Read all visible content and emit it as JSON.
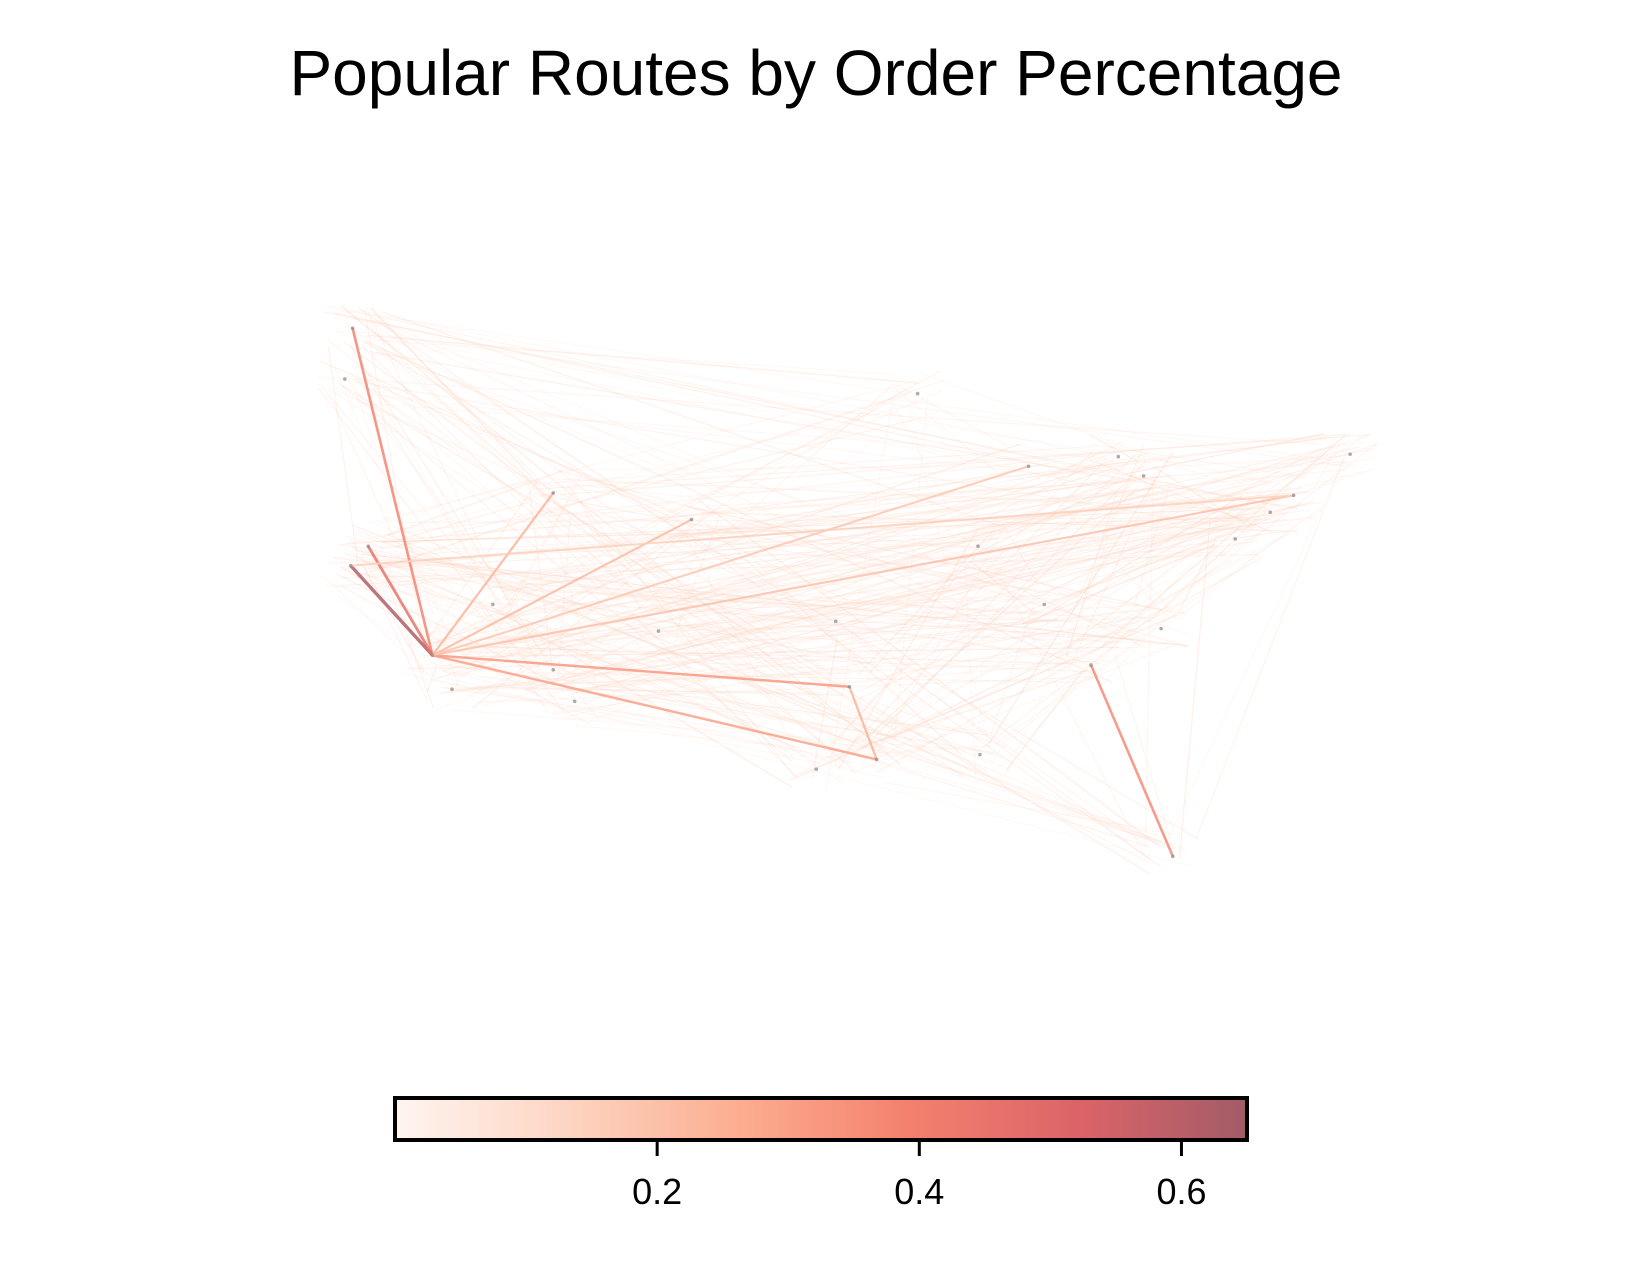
{
  "title": "Popular Routes by Order Percentage",
  "colorbar": {
    "min": 0.0,
    "max": 0.65,
    "stops": [
      "#fff5f0",
      "#fdd5c2",
      "#fcae91",
      "#f4816e",
      "#dc6468",
      "#a25c67"
    ],
    "ticks": [
      {
        "value": 0.2,
        "label": "0.2"
      },
      {
        "value": 0.4,
        "label": "0.4"
      },
      {
        "value": 0.6,
        "label": "0.6"
      }
    ]
  },
  "map_data": {
    "type": "route-map",
    "lon_range": [
      -125,
      -67
    ],
    "lat_range": [
      24,
      50
    ],
    "strong_routes": [
      {
        "from": [
          -122.3,
          47.6
        ],
        "to": [
          -118.2,
          34.1
        ],
        "value": 0.38
      },
      {
        "from": [
          -122.4,
          37.8
        ],
        "to": [
          -118.2,
          34.1
        ],
        "value": 0.62
      },
      {
        "from": [
          -121.5,
          38.6
        ],
        "to": [
          -118.2,
          34.1
        ],
        "value": 0.45
      },
      {
        "from": [
          -118.2,
          34.1
        ],
        "to": [
          -95.4,
          29.8
        ],
        "value": 0.3
      },
      {
        "from": [
          -118.2,
          34.1
        ],
        "to": [
          -96.8,
          32.8
        ],
        "value": 0.32
      },
      {
        "from": [
          -118.2,
          34.1
        ],
        "to": [
          -74.0,
          40.7
        ],
        "value": 0.2
      },
      {
        "from": [
          -118.2,
          34.1
        ],
        "to": [
          -104.9,
          39.7
        ],
        "value": 0.22
      },
      {
        "from": [
          -118.2,
          34.1
        ],
        "to": [
          -112.0,
          40.8
        ],
        "value": 0.24
      },
      {
        "from": [
          -84.4,
          33.7
        ],
        "to": [
          -80.2,
          25.8
        ],
        "value": 0.36
      },
      {
        "from": [
          -96.8,
          32.8
        ],
        "to": [
          -95.4,
          29.8
        ],
        "value": 0.25
      },
      {
        "from": [
          -118.2,
          34.1
        ],
        "to": [
          -87.6,
          41.9
        ],
        "value": 0.18
      },
      {
        "from": [
          -122.4,
          37.8
        ],
        "to": [
          -74.0,
          40.7
        ],
        "value": 0.15
      }
    ]
  }
}
